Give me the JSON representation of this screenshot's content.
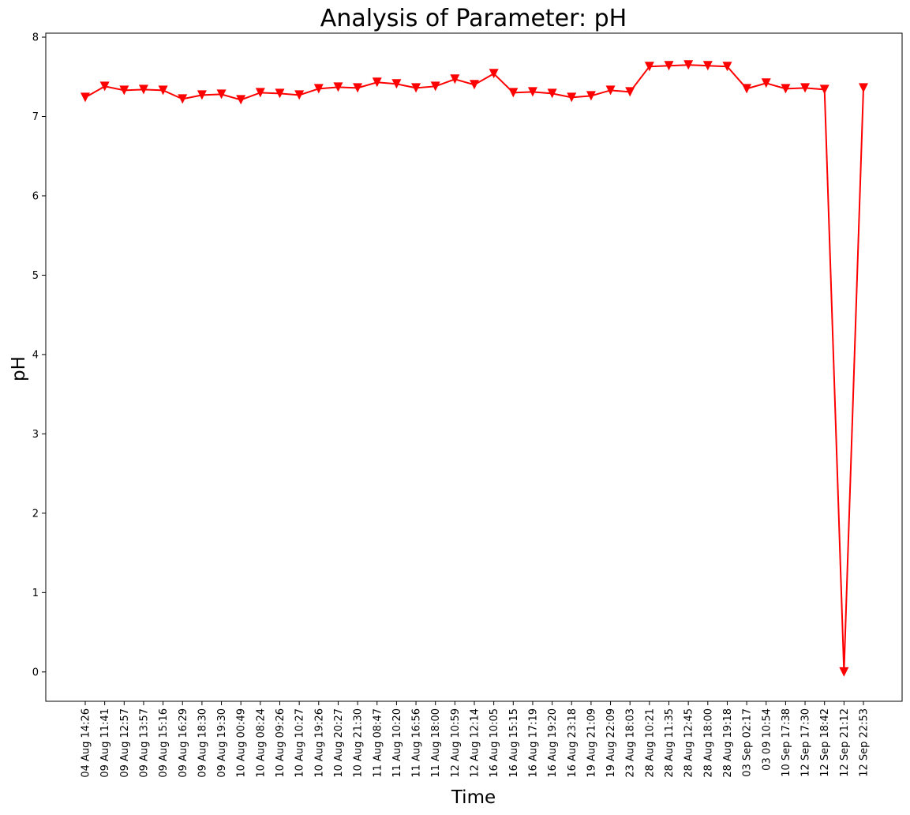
{
  "chart_data": {
    "type": "line",
    "title": "Analysis of Parameter: pH",
    "xlabel": "Time",
    "ylabel": "pH",
    "ylim": [
      -0.37,
      8.05
    ],
    "yticks": [
      0,
      1,
      2,
      3,
      4,
      5,
      6,
      7,
      8
    ],
    "grid": false,
    "line_color": "#ff0000",
    "marker": "triangle-down",
    "categories": [
      "04 Aug 14:26",
      "09 Aug 11:41",
      "09 Aug 12:57",
      "09 Aug 13:57",
      "09 Aug 15:16",
      "09 Aug 16:29",
      "09 Aug 18:30",
      "09 Aug 19:30",
      "10 Aug 00:49",
      "10 Aug 08:24",
      "10 Aug 09:26",
      "10 Aug 10:27",
      "10 Aug 19:26",
      "10 Aug 20:27",
      "10 Aug 21:30",
      "11 Aug 08:47",
      "11 Aug 10:20",
      "11 Aug 16:56",
      "11 Aug 18:00",
      "12 Aug 10:59",
      "12 Aug 12:14",
      "16 Aug 10:05",
      "16 Aug 15:15",
      "16 Aug 17:19",
      "16 Aug 19:20",
      "16 Aug 23:18",
      "19 Aug 21:09",
      "19 Aug 22:09",
      "23 Aug 18:03",
      "28 Aug 10:21",
      "28 Aug 11:35",
      "28 Aug 12:45",
      "28 Aug 18:00",
      "28 Aug 19:18",
      "03 Sep 02:17",
      "03 09 10:54",
      "10 Sep 17:38",
      "12 Sep 17:30",
      "12 Sep 18:42",
      "12 Sep 21:12",
      "12 Sep 22:53"
    ],
    "values": [
      7.24,
      7.38,
      7.33,
      7.34,
      7.33,
      7.22,
      7.27,
      7.28,
      7.21,
      7.3,
      7.29,
      7.27,
      7.35,
      7.37,
      7.36,
      7.43,
      7.41,
      7.36,
      7.38,
      7.47,
      7.4,
      7.54,
      7.3,
      7.31,
      7.29,
      7.24,
      7.26,
      7.33,
      7.31,
      7.63,
      7.64,
      7.65,
      7.64,
      7.63,
      7.35,
      7.42,
      7.35,
      7.36,
      7.34,
      0.0,
      7.36
    ]
  }
}
